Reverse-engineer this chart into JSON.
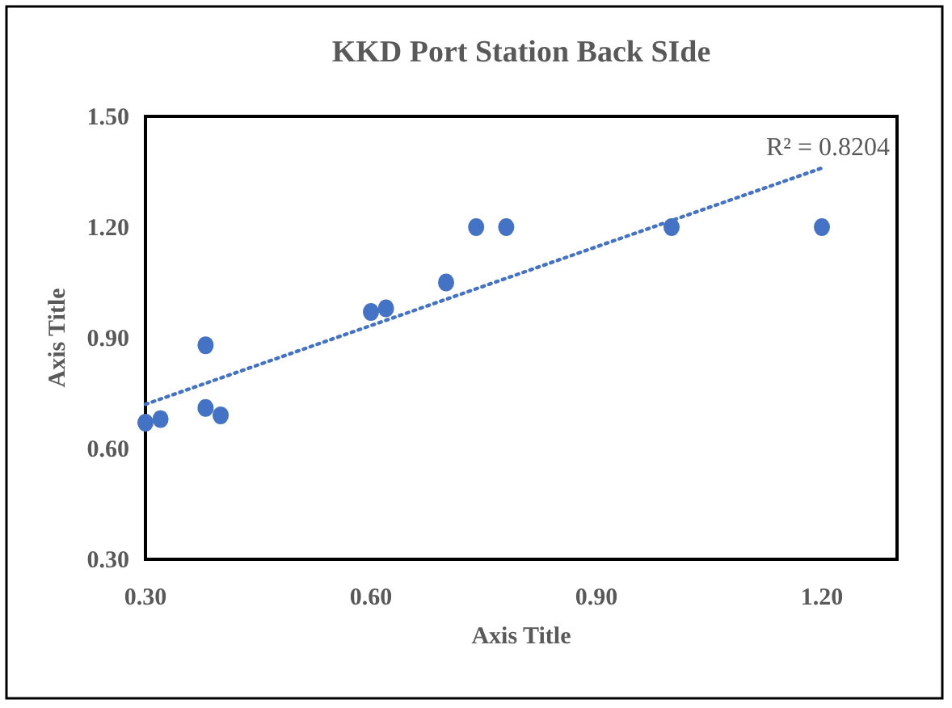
{
  "chart_data": {
    "type": "scatter",
    "title": "KKD Port Station Back SIde",
    "xlabel": "Axis Title",
    "ylabel": "Axis Title",
    "xlim": [
      0.3,
      1.3
    ],
    "xticks": [
      {
        "value": 0.3,
        "label": "0.30"
      },
      {
        "value": 0.6,
        "label": "0.60"
      },
      {
        "value": 0.9,
        "label": "0.90"
      },
      {
        "value": 1.2,
        "label": "1.20"
      }
    ],
    "ylim": [
      0.3,
      1.5
    ],
    "yticks": [
      {
        "value": 0.3,
        "label": "0.30"
      },
      {
        "value": 0.6,
        "label": "0.60"
      },
      {
        "value": 0.9,
        "label": "0.90"
      },
      {
        "value": 1.2,
        "label": "1.20"
      },
      {
        "value": 1.5,
        "label": "1.50"
      }
    ],
    "grid": false,
    "series": [
      {
        "color": "#4472c4",
        "marker": "circle",
        "x": [
          0.3,
          0.32,
          0.38,
          0.38,
          0.4,
          0.6,
          0.62,
          0.7,
          0.74,
          0.78,
          1.0,
          1.2
        ],
        "values": [
          0.67,
          0.68,
          0.88,
          0.71,
          0.69,
          0.97,
          0.98,
          1.05,
          1.2,
          1.2,
          1.2,
          1.2
        ]
      },
      {
        "type": "line",
        "color": "#4472c4",
        "line_style": "dotted",
        "marker": "none",
        "x": [
          0.3,
          1.2
        ],
        "values": [
          0.72,
          1.36
        ]
      }
    ],
    "annotations": [
      {
        "text": "R² = 0.8204",
        "x": 1.2,
        "y": 1.36
      }
    ]
  }
}
